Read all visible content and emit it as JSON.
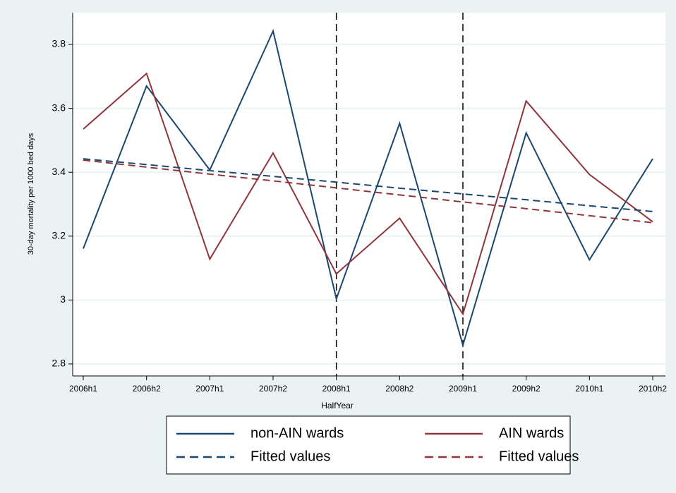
{
  "chart_data": {
    "type": "line",
    "x_label": "HalfYear",
    "y_label": "30-day mortality per 1000 bed days",
    "categories": [
      "2006h1",
      "2006h2",
      "2007h1",
      "2007h2",
      "2008h1",
      "2008h2",
      "2009h1",
      "2009h2",
      "2010h1",
      "2010h2"
    ],
    "series": [
      {
        "name": "non-AIN wards",
        "color": "#1a476f",
        "style": "solid",
        "values": [
          3.161,
          3.67,
          3.407,
          3.842,
          3.004,
          3.553,
          2.859,
          3.523,
          3.126,
          3.442
        ]
      },
      {
        "name": "AIN wards",
        "color": "#90353b",
        "style": "solid",
        "values": [
          3.535,
          3.709,
          3.128,
          3.46,
          3.082,
          3.256,
          2.956,
          3.623,
          3.393,
          3.245
        ]
      },
      {
        "name": "Fitted values",
        "color": "#1a476f",
        "style": "dashed",
        "values": [
          3.442,
          3.424,
          3.405,
          3.387,
          3.369,
          3.35,
          3.332,
          3.314,
          3.295,
          3.277
        ]
      },
      {
        "name": "Fitted values",
        "color": "#90353b",
        "style": "dashed",
        "values": [
          3.438,
          3.416,
          3.394,
          3.373,
          3.351,
          3.329,
          3.307,
          3.286,
          3.264,
          3.242
        ]
      }
    ],
    "vlines": [
      "2008h1",
      "2009h1"
    ],
    "ylim": [
      2.7624,
      3.8994
    ],
    "yticks": [
      2.8,
      3,
      3.2,
      3.4,
      3.6,
      3.8
    ],
    "grid": true
  }
}
